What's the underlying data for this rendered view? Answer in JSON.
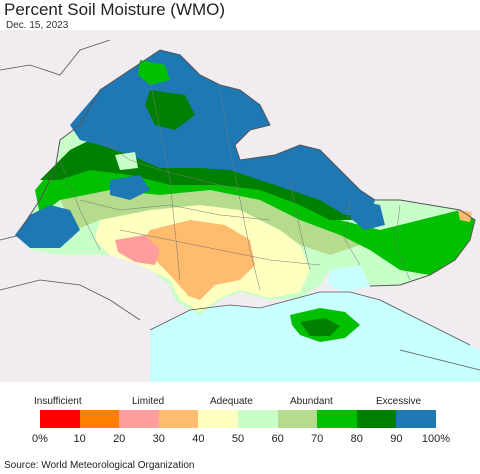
{
  "title": "Percent Soil Moisture (WMO)",
  "date": "Dec. 15, 2023",
  "source": "Source: World Meteorological Organization",
  "legend": {
    "categories": [
      "Insufficient",
      "Limited",
      "Adequate",
      "Abundant",
      "Excessive"
    ],
    "ticks": [
      "0%",
      "10",
      "20",
      "30",
      "40",
      "50",
      "60",
      "70",
      "80",
      "90",
      "100%"
    ],
    "colors": [
      "#ff0000",
      "#ff7f00",
      "#ff9d9d",
      "#ffbb6e",
      "#ffffc0",
      "#c8ffc8",
      "#b4dc8c",
      "#00c000",
      "#008000",
      "#1e78b4"
    ]
  },
  "map_colors": {
    "land_outside": "#f0ecf0",
    "sea": "#c8ffff",
    "borders": "#555555"
  }
}
